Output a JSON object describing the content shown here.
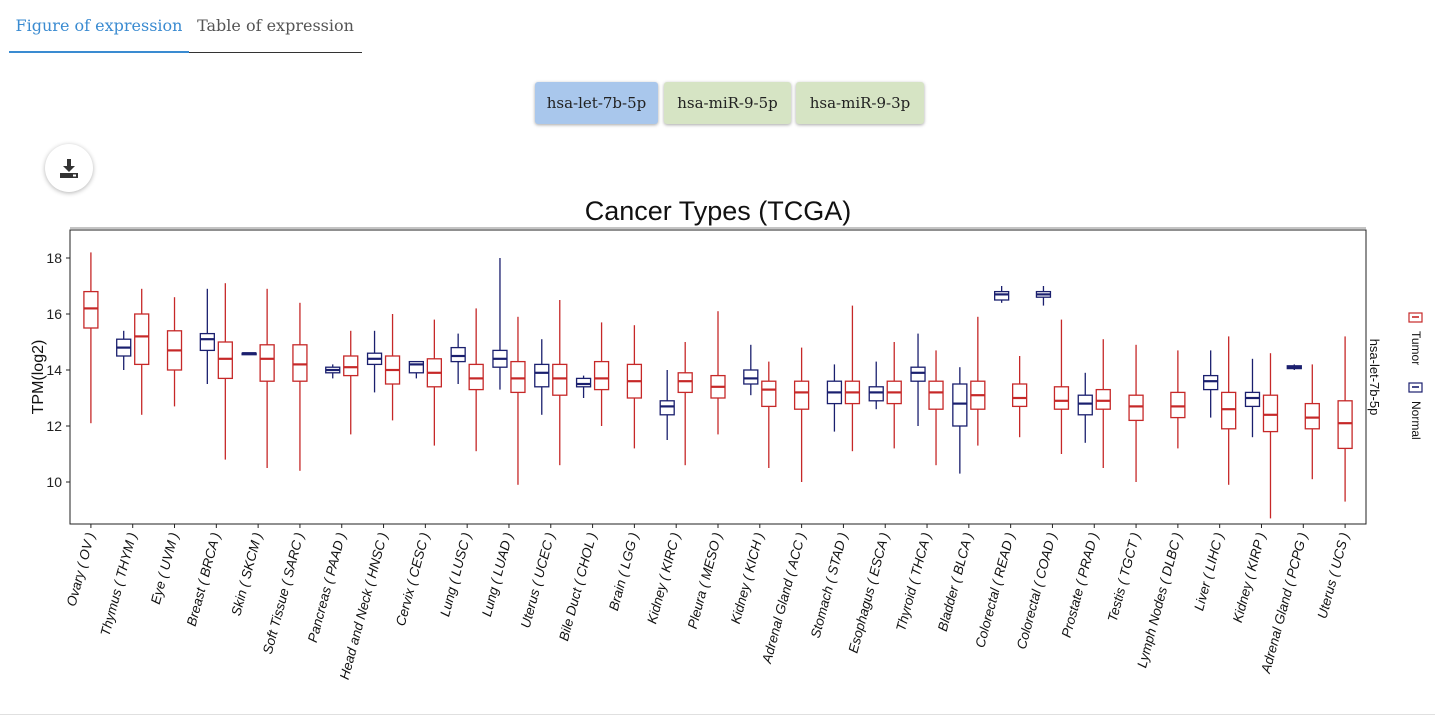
{
  "tabs": [
    {
      "label": "Figure of expression"
    },
    {
      "label": "Table of expression"
    }
  ],
  "mirnas": [
    {
      "label": "hsa-let-7b-5p"
    },
    {
      "label": "hsa-miR-9-5p"
    },
    {
      "label": "hsa-miR-9-3p"
    }
  ],
  "download": {
    "icon": "download-icon"
  },
  "colors": {
    "tumor": "#c62828",
    "normal": "#1a1f6e"
  },
  "chart_data": {
    "type": "boxplot",
    "title": "Cancer Types (TCGA)",
    "ylabel": "TPM(log2)",
    "ylim": [
      8.5,
      19
    ],
    "yticks": [
      10,
      12,
      14,
      16,
      18
    ],
    "facet_label": "hsa-let-7b-5p",
    "legend": {
      "placement": "right",
      "entries": [
        "Tumor",
        "Normal"
      ]
    },
    "categories": [
      {
        "label": "Ovary ( OV )",
        "tumor": [
          12.1,
          15.5,
          16.2,
          16.8,
          18.2
        ]
      },
      {
        "label": "Thymus ( THYM )",
        "normal": [
          14.0,
          14.5,
          14.8,
          15.1,
          15.4
        ],
        "tumor": [
          12.4,
          14.2,
          15.2,
          16.0,
          16.9
        ]
      },
      {
        "label": "Eye ( UVM )",
        "tumor": [
          12.7,
          14.0,
          14.7,
          15.4,
          16.6
        ]
      },
      {
        "label": "Breast ( BRCA )",
        "normal": [
          13.5,
          14.7,
          15.1,
          15.3,
          16.9
        ],
        "tumor": [
          10.8,
          13.7,
          14.4,
          15.0,
          17.1
        ]
      },
      {
        "label": "Skin ( SKCM )",
        "normal": [
          14.6,
          14.6,
          14.6,
          14.6,
          14.6
        ],
        "tumor": [
          10.5,
          13.6,
          14.4,
          14.9,
          16.9
        ]
      },
      {
        "label": "Soft Tissue ( SARC )",
        "tumor": [
          10.4,
          13.6,
          14.2,
          14.9,
          16.4
        ]
      },
      {
        "label": "Pancreas ( PAAD )",
        "normal": [
          13.7,
          13.9,
          14.0,
          14.1,
          14.2
        ],
        "tumor": [
          11.7,
          13.8,
          14.1,
          14.5,
          15.4
        ]
      },
      {
        "label": "Head and Neck ( HNSC )",
        "normal": [
          13.2,
          14.2,
          14.4,
          14.6,
          15.4
        ],
        "tumor": [
          12.2,
          13.5,
          14.0,
          14.5,
          16.0
        ]
      },
      {
        "label": "Cervix ( CESC )",
        "normal": [
          13.7,
          13.9,
          14.2,
          14.3,
          14.3
        ],
        "tumor": [
          11.3,
          13.4,
          13.9,
          14.4,
          15.8
        ]
      },
      {
        "label": "Lung ( LUSC )",
        "normal": [
          13.5,
          14.3,
          14.5,
          14.8,
          15.3
        ],
        "tumor": [
          11.1,
          13.3,
          13.7,
          14.2,
          16.2
        ]
      },
      {
        "label": "Lung ( LUAD )",
        "normal": [
          13.3,
          14.1,
          14.4,
          14.7,
          18.0
        ],
        "tumor": [
          9.9,
          13.2,
          13.7,
          14.3,
          15.9
        ]
      },
      {
        "label": "Uterus ( UCEC )",
        "normal": [
          12.4,
          13.4,
          13.9,
          14.2,
          15.1
        ],
        "tumor": [
          10.6,
          13.1,
          13.7,
          14.2,
          16.5
        ]
      },
      {
        "label": "Bile Duct ( CHOL )",
        "normal": [
          13.0,
          13.4,
          13.5,
          13.7,
          13.8
        ],
        "tumor": [
          12.0,
          13.3,
          13.7,
          14.3,
          15.7
        ]
      },
      {
        "label": "Brain ( LGG )",
        "tumor": [
          11.2,
          13.0,
          13.6,
          14.2,
          15.6
        ]
      },
      {
        "label": "Kidney ( KIRC )",
        "normal": [
          11.5,
          12.4,
          12.7,
          12.9,
          14.0
        ],
        "tumor": [
          10.6,
          13.2,
          13.6,
          13.9,
          15.0
        ]
      },
      {
        "label": "Pleura ( MESO )",
        "tumor": [
          11.7,
          13.0,
          13.4,
          13.8,
          16.1
        ]
      },
      {
        "label": "Kidney ( KICH )",
        "normal": [
          13.1,
          13.5,
          13.7,
          14.0,
          14.9
        ],
        "tumor": [
          10.5,
          12.7,
          13.3,
          13.6,
          14.3
        ]
      },
      {
        "label": "Adrenal Gland ( ACC )",
        "tumor": [
          10.0,
          12.6,
          13.2,
          13.6,
          14.8
        ]
      },
      {
        "label": "Stomach ( STAD )",
        "normal": [
          11.8,
          12.8,
          13.2,
          13.6,
          14.2
        ],
        "tumor": [
          11.1,
          12.8,
          13.2,
          13.6,
          16.3
        ]
      },
      {
        "label": "Esophagus ( ESCA )",
        "normal": [
          12.6,
          12.9,
          13.2,
          13.4,
          14.3
        ],
        "tumor": [
          11.2,
          12.8,
          13.2,
          13.6,
          15.0
        ]
      },
      {
        "label": "Thyroid ( THCA )",
        "normal": [
          12.0,
          13.6,
          13.9,
          14.1,
          15.3
        ],
        "tumor": [
          10.6,
          12.6,
          13.2,
          13.6,
          14.7
        ]
      },
      {
        "label": "Bladder ( BLCA )",
        "normal": [
          10.3,
          12.0,
          12.8,
          13.5,
          14.1
        ],
        "tumor": [
          11.3,
          12.6,
          13.1,
          13.6,
          15.9
        ]
      },
      {
        "label": "Colorectal ( READ )",
        "normal": [
          16.4,
          16.5,
          16.7,
          16.8,
          17.0
        ],
        "tumor": [
          11.6,
          12.7,
          13.0,
          13.5,
          14.5
        ]
      },
      {
        "label": "Colorectal ( COAD )",
        "normal": [
          16.3,
          16.6,
          16.7,
          16.8,
          17.0
        ],
        "tumor": [
          11.0,
          12.6,
          12.9,
          13.4,
          15.8
        ]
      },
      {
        "label": "Prostate ( PRAD )",
        "normal": [
          11.4,
          12.4,
          12.8,
          13.1,
          13.9
        ],
        "tumor": [
          10.5,
          12.6,
          12.9,
          13.3,
          15.1
        ]
      },
      {
        "label": "Testis ( TGCT )",
        "tumor": [
          10.0,
          12.2,
          12.7,
          13.1,
          14.9
        ]
      },
      {
        "label": "Lymph Nodes ( DLBC )",
        "tumor": [
          11.2,
          12.3,
          12.7,
          13.2,
          14.7
        ]
      },
      {
        "label": "Liver ( LIHC )",
        "normal": [
          12.3,
          13.3,
          13.6,
          13.8,
          14.7
        ],
        "tumor": [
          9.9,
          11.9,
          12.6,
          13.2,
          15.2
        ]
      },
      {
        "label": "Kidney ( KIRP )",
        "normal": [
          11.6,
          12.7,
          13.0,
          13.2,
          14.4
        ],
        "tumor": [
          8.7,
          11.8,
          12.4,
          13.1,
          14.6
        ]
      },
      {
        "label": "Adrenal Gland ( PCPG )",
        "normal": [
          14.0,
          14.05,
          14.1,
          14.15,
          14.2
        ],
        "tumor": [
          10.1,
          11.9,
          12.3,
          12.8,
          14.2
        ]
      },
      {
        "label": "Uterus ( UCS )",
        "tumor": [
          9.3,
          11.2,
          12.1,
          12.9,
          15.2
        ]
      }
    ]
  }
}
